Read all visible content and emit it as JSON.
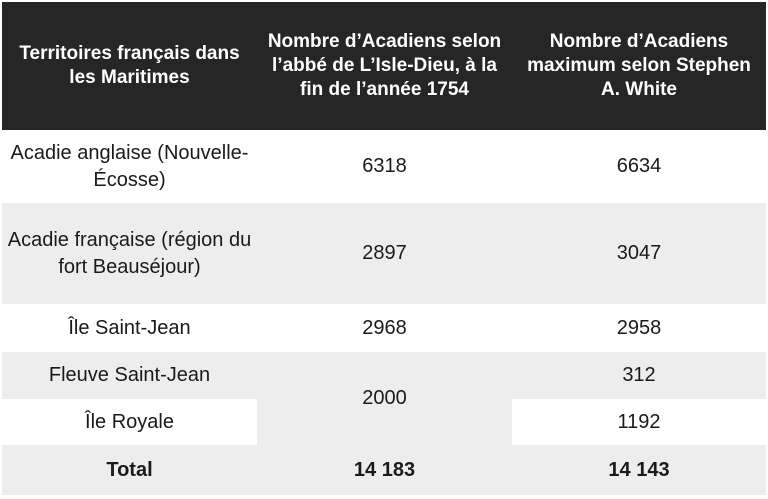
{
  "table": {
    "headers": [
      "Territoires français dans les Maritimes",
      "Nombre d’Acadiens selon l’abbé de L’Isle-Dieu, à la fin de l’année 1754",
      "Nombre d’Acadiens maximum selon Stephen A. White"
    ],
    "rows": [
      {
        "territory": "Acadie anglaise (Nouvelle-Écosse)",
        "isle_dieu": "6318",
        "white": "6634"
      },
      {
        "territory": "Acadie française (région du fort Beauséjour)",
        "isle_dieu": "2897",
        "white": "3047"
      },
      {
        "territory": "Île Saint-Jean",
        "isle_dieu": "2968",
        "white": "2958"
      },
      {
        "territory": "Fleuve Saint-Jean",
        "isle_dieu": "2000",
        "white": "312"
      },
      {
        "territory": "Île Royale",
        "white": "1192"
      }
    ],
    "total": {
      "label": "Total",
      "isle_dieu": "14 183",
      "white": "14 143"
    }
  },
  "colors": {
    "header_bg": "#262626",
    "header_text": "#ffffff",
    "band_grey": "#ededed",
    "band_white": "#ffffff"
  }
}
